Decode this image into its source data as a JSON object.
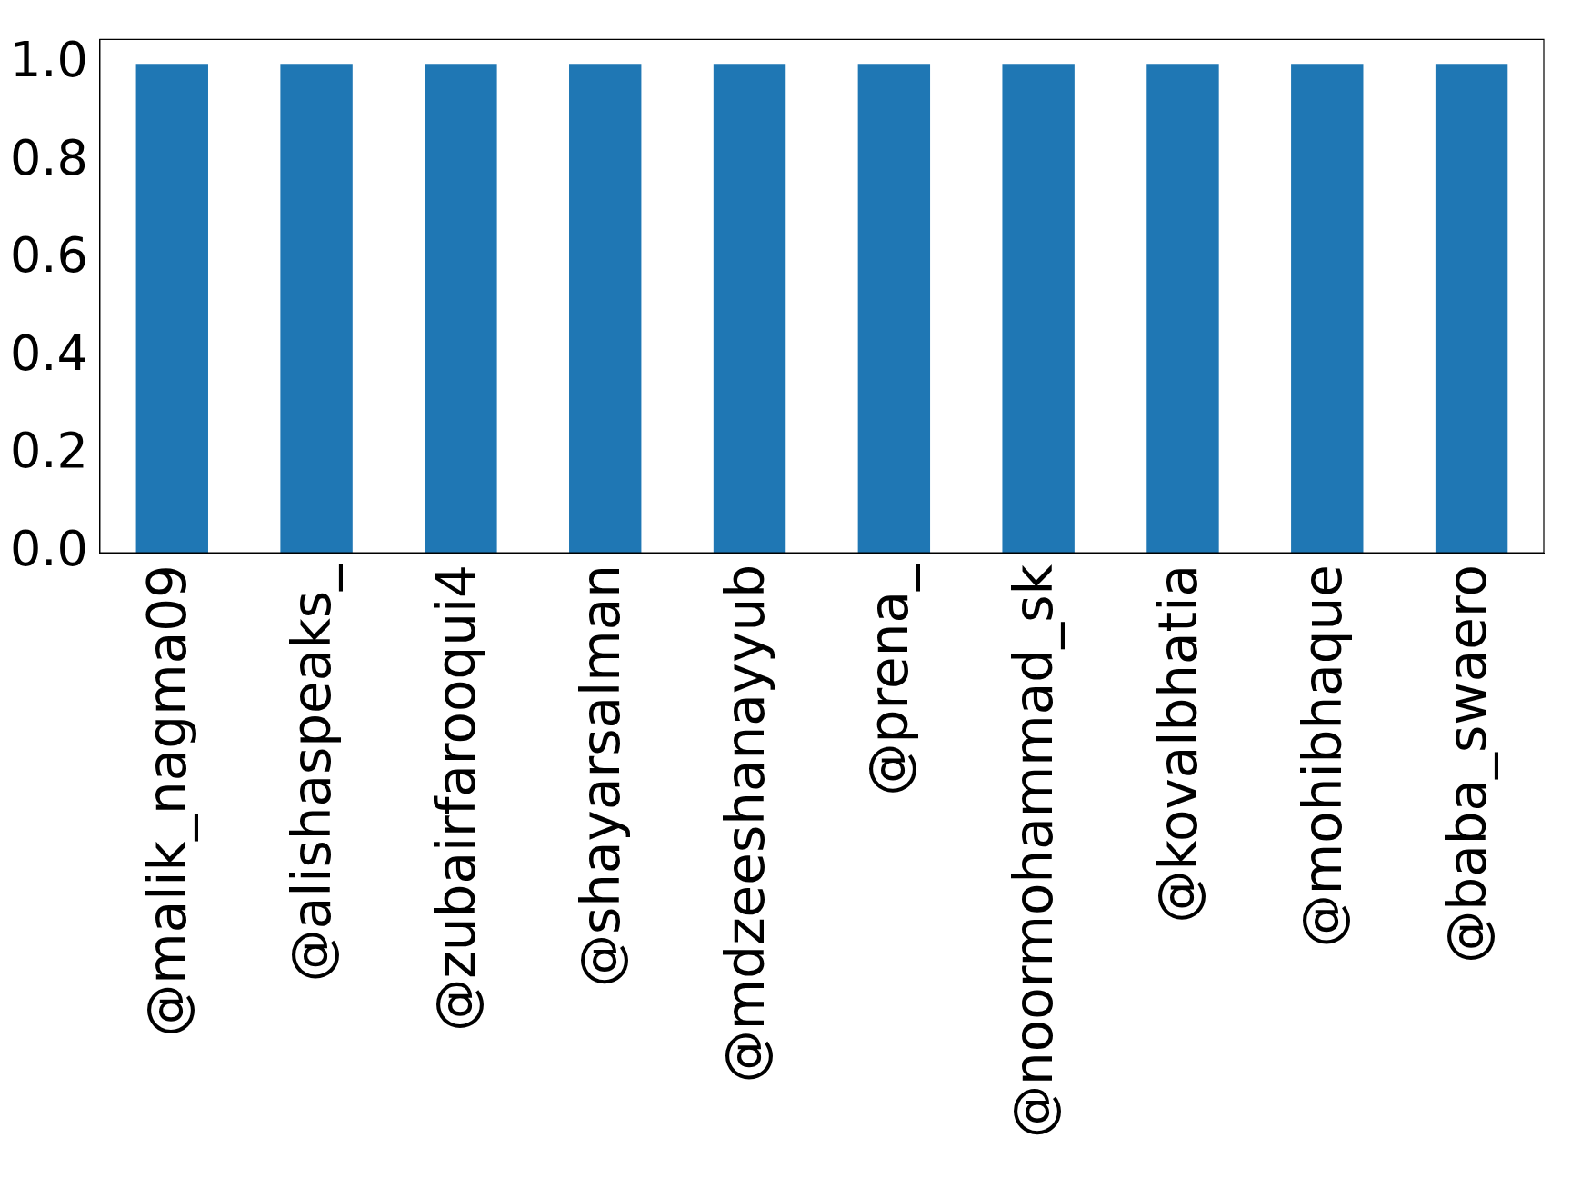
{
  "chart_data": {
    "type": "bar",
    "categories": [
      "@malik_nagma09",
      "@alishaspeaks_",
      "@zubairfarooqui4",
      "@shayarsalman",
      "@mdzeeshanayyub",
      "@prena_",
      "@noormohammad_sk",
      "@kovalbhatia",
      "@mohibhaque",
      "@baba_swaero"
    ],
    "values": [
      1,
      1,
      1,
      1,
      1,
      1,
      1,
      1,
      1,
      1
    ],
    "color": "#1f77b4",
    "ylim": [
      0,
      1.05
    ],
    "yticks": [
      {
        "value": 0,
        "label": "0.0"
      },
      {
        "value": 0.2,
        "label": "0.2"
      },
      {
        "value": 0.4,
        "label": "0.4"
      },
      {
        "value": 0.6,
        "label": "0.6"
      },
      {
        "value": 0.8,
        "label": "0.8"
      },
      {
        "value": 1,
        "label": "1.0"
      }
    ],
    "grid": false,
    "legend": false
  }
}
